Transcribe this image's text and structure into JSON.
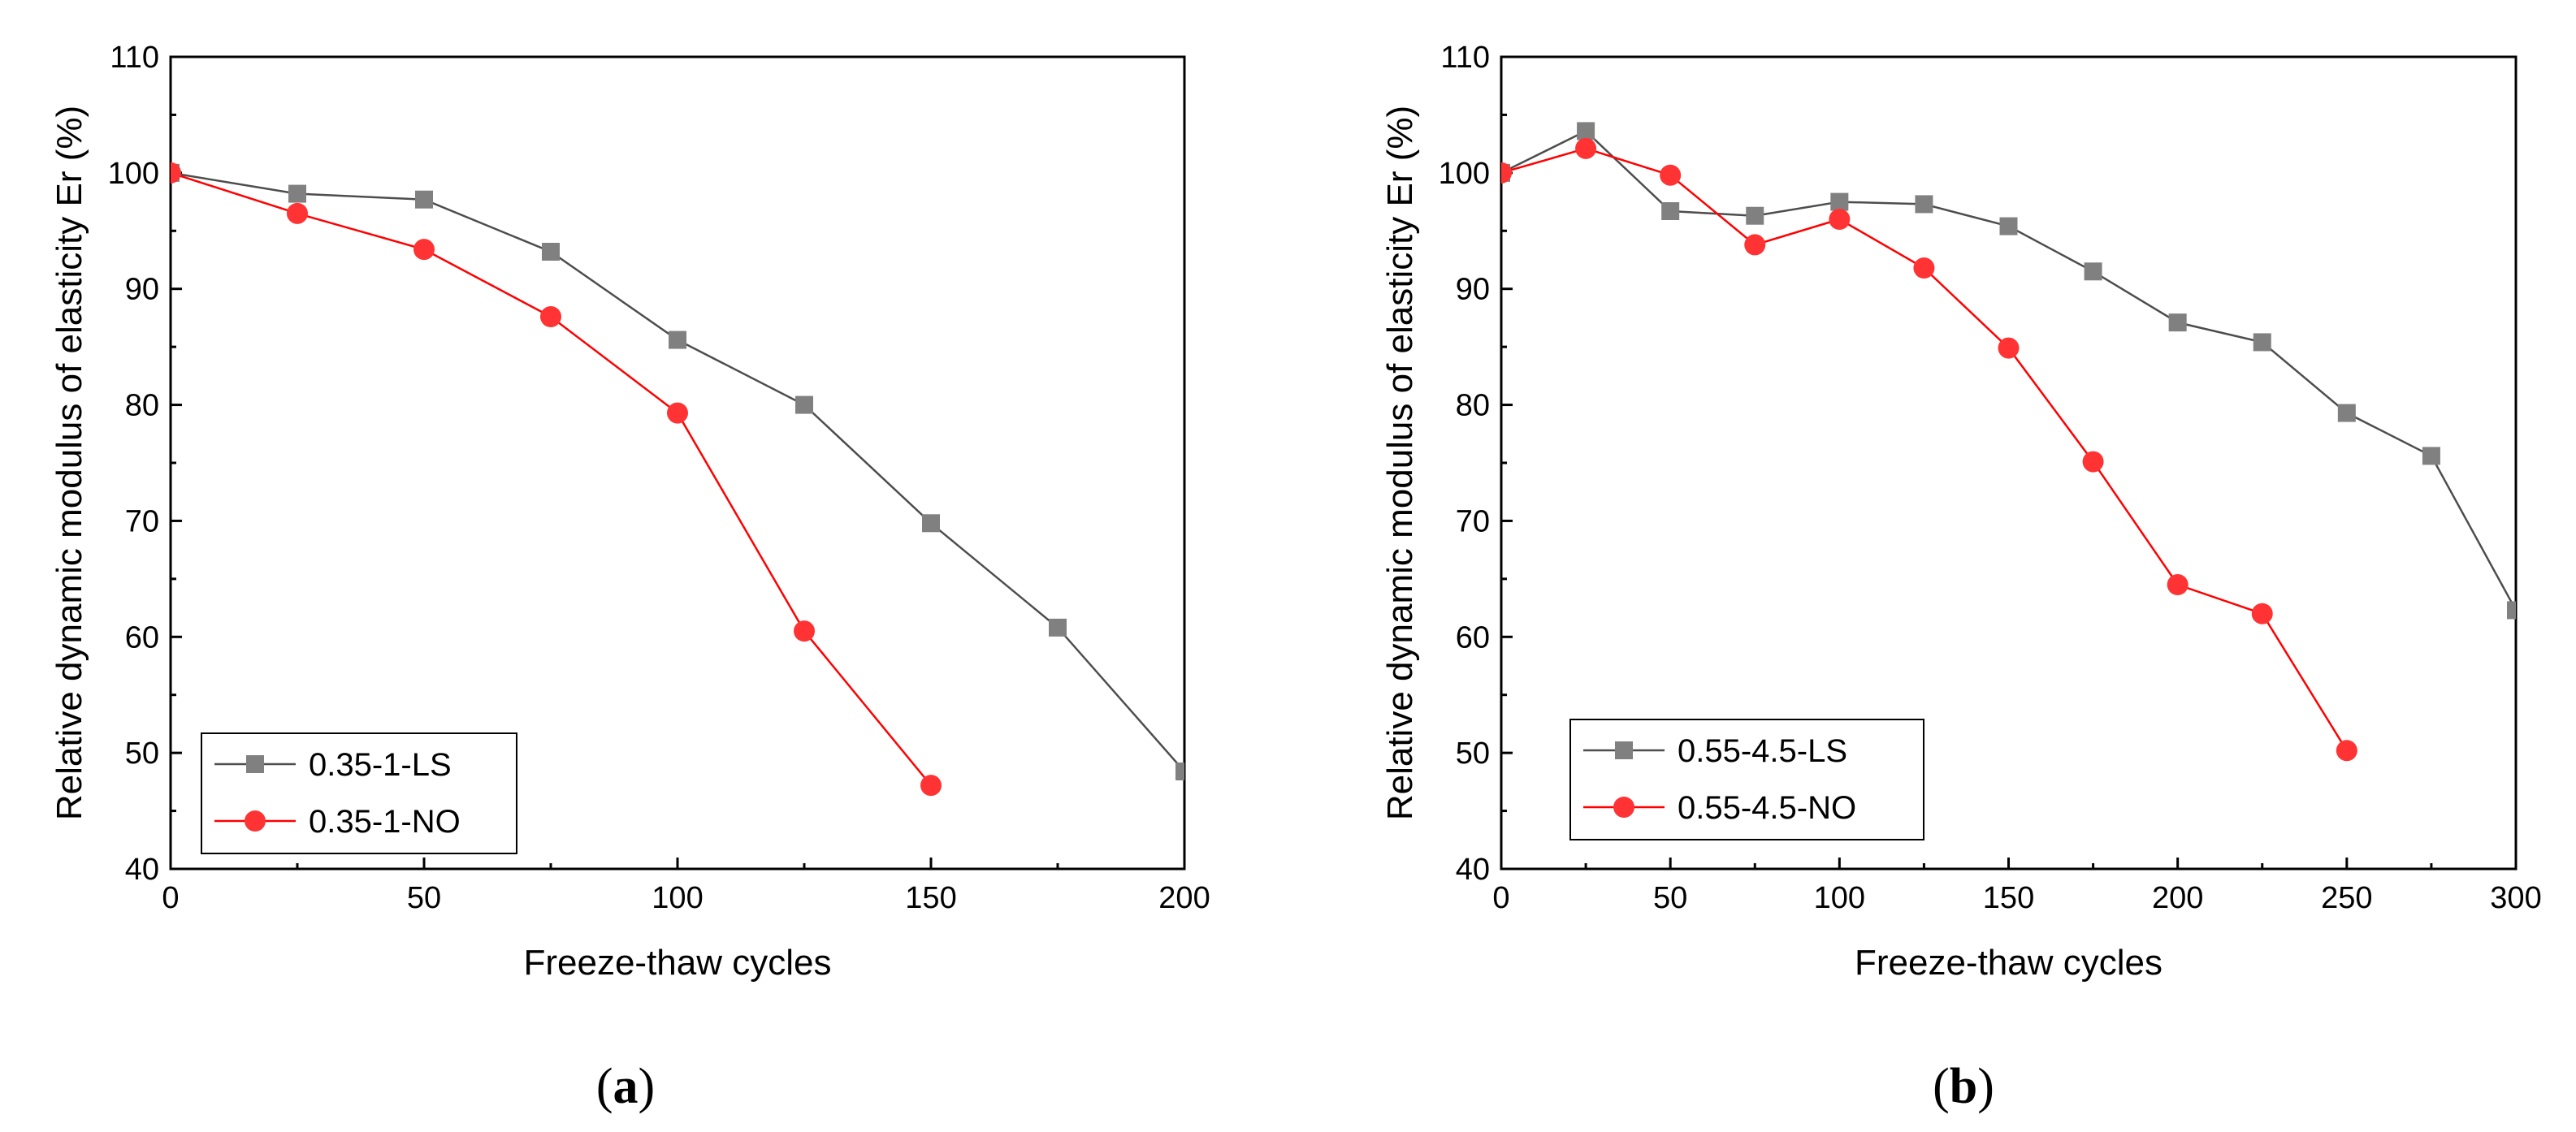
{
  "chart_data": [
    {
      "type": "line",
      "panel_label": "a",
      "xlabel": "Freeze-thaw cycles",
      "ylabel": "Relative dynamic modulus of elasticity Er (%)",
      "xlim": [
        0,
        200
      ],
      "ylim": [
        40,
        110
      ],
      "xticks": [
        0,
        50,
        100,
        150,
        200
      ],
      "yticks": [
        40,
        50,
        60,
        70,
        80,
        90,
        100,
        110
      ],
      "grid": false,
      "legend_position": "bottom-left",
      "series": [
        {
          "name": "0.35-1-LS",
          "marker": "square",
          "color": "#808080",
          "line_color": "#4d4d4d",
          "x": [
            0,
            25,
            50,
            75,
            100,
            125,
            150,
            175,
            200
          ],
          "values": [
            100,
            98.2,
            97.7,
            93.2,
            85.6,
            80.0,
            69.8,
            60.8,
            48.4
          ]
        },
        {
          "name": "0.35-1-NO",
          "marker": "circle",
          "color": "#ff3333",
          "line_color": "#ff0000",
          "x": [
            0,
            25,
            50,
            75,
            100,
            125,
            150
          ],
          "values": [
            100,
            96.5,
            93.4,
            87.6,
            79.3,
            60.5,
            47.2
          ]
        }
      ]
    },
    {
      "type": "line",
      "panel_label": "b",
      "xlabel": "Freeze-thaw cycles",
      "ylabel": "Relative dynamic modulus of elasticity Er (%)",
      "xlim": [
        0,
        300
      ],
      "ylim": [
        40,
        110
      ],
      "xticks": [
        0,
        50,
        100,
        150,
        200,
        250,
        300
      ],
      "yticks": [
        40,
        50,
        60,
        70,
        80,
        90,
        100,
        110
      ],
      "grid": false,
      "legend_position": "bottom-left",
      "series": [
        {
          "name": "0.55-4.5-LS",
          "marker": "square",
          "color": "#808080",
          "line_color": "#4d4d4d",
          "x": [
            0,
            25,
            50,
            75,
            100,
            125,
            150,
            175,
            200,
            225,
            250,
            275,
            300
          ],
          "values": [
            100,
            103.6,
            96.7,
            96.3,
            97.5,
            97.3,
            95.4,
            91.5,
            87.1,
            85.4,
            79.3,
            75.6,
            62.3
          ]
        },
        {
          "name": "0.55-4.5-NO",
          "marker": "circle",
          "color": "#ff3333",
          "line_color": "#ff0000",
          "x": [
            0,
            25,
            50,
            75,
            100,
            125,
            150,
            175,
            200,
            225,
            250
          ],
          "values": [
            100,
            102.1,
            99.8,
            93.8,
            96.0,
            91.8,
            84.9,
            75.1,
            64.5,
            62.0,
            50.2
          ]
        }
      ]
    }
  ]
}
